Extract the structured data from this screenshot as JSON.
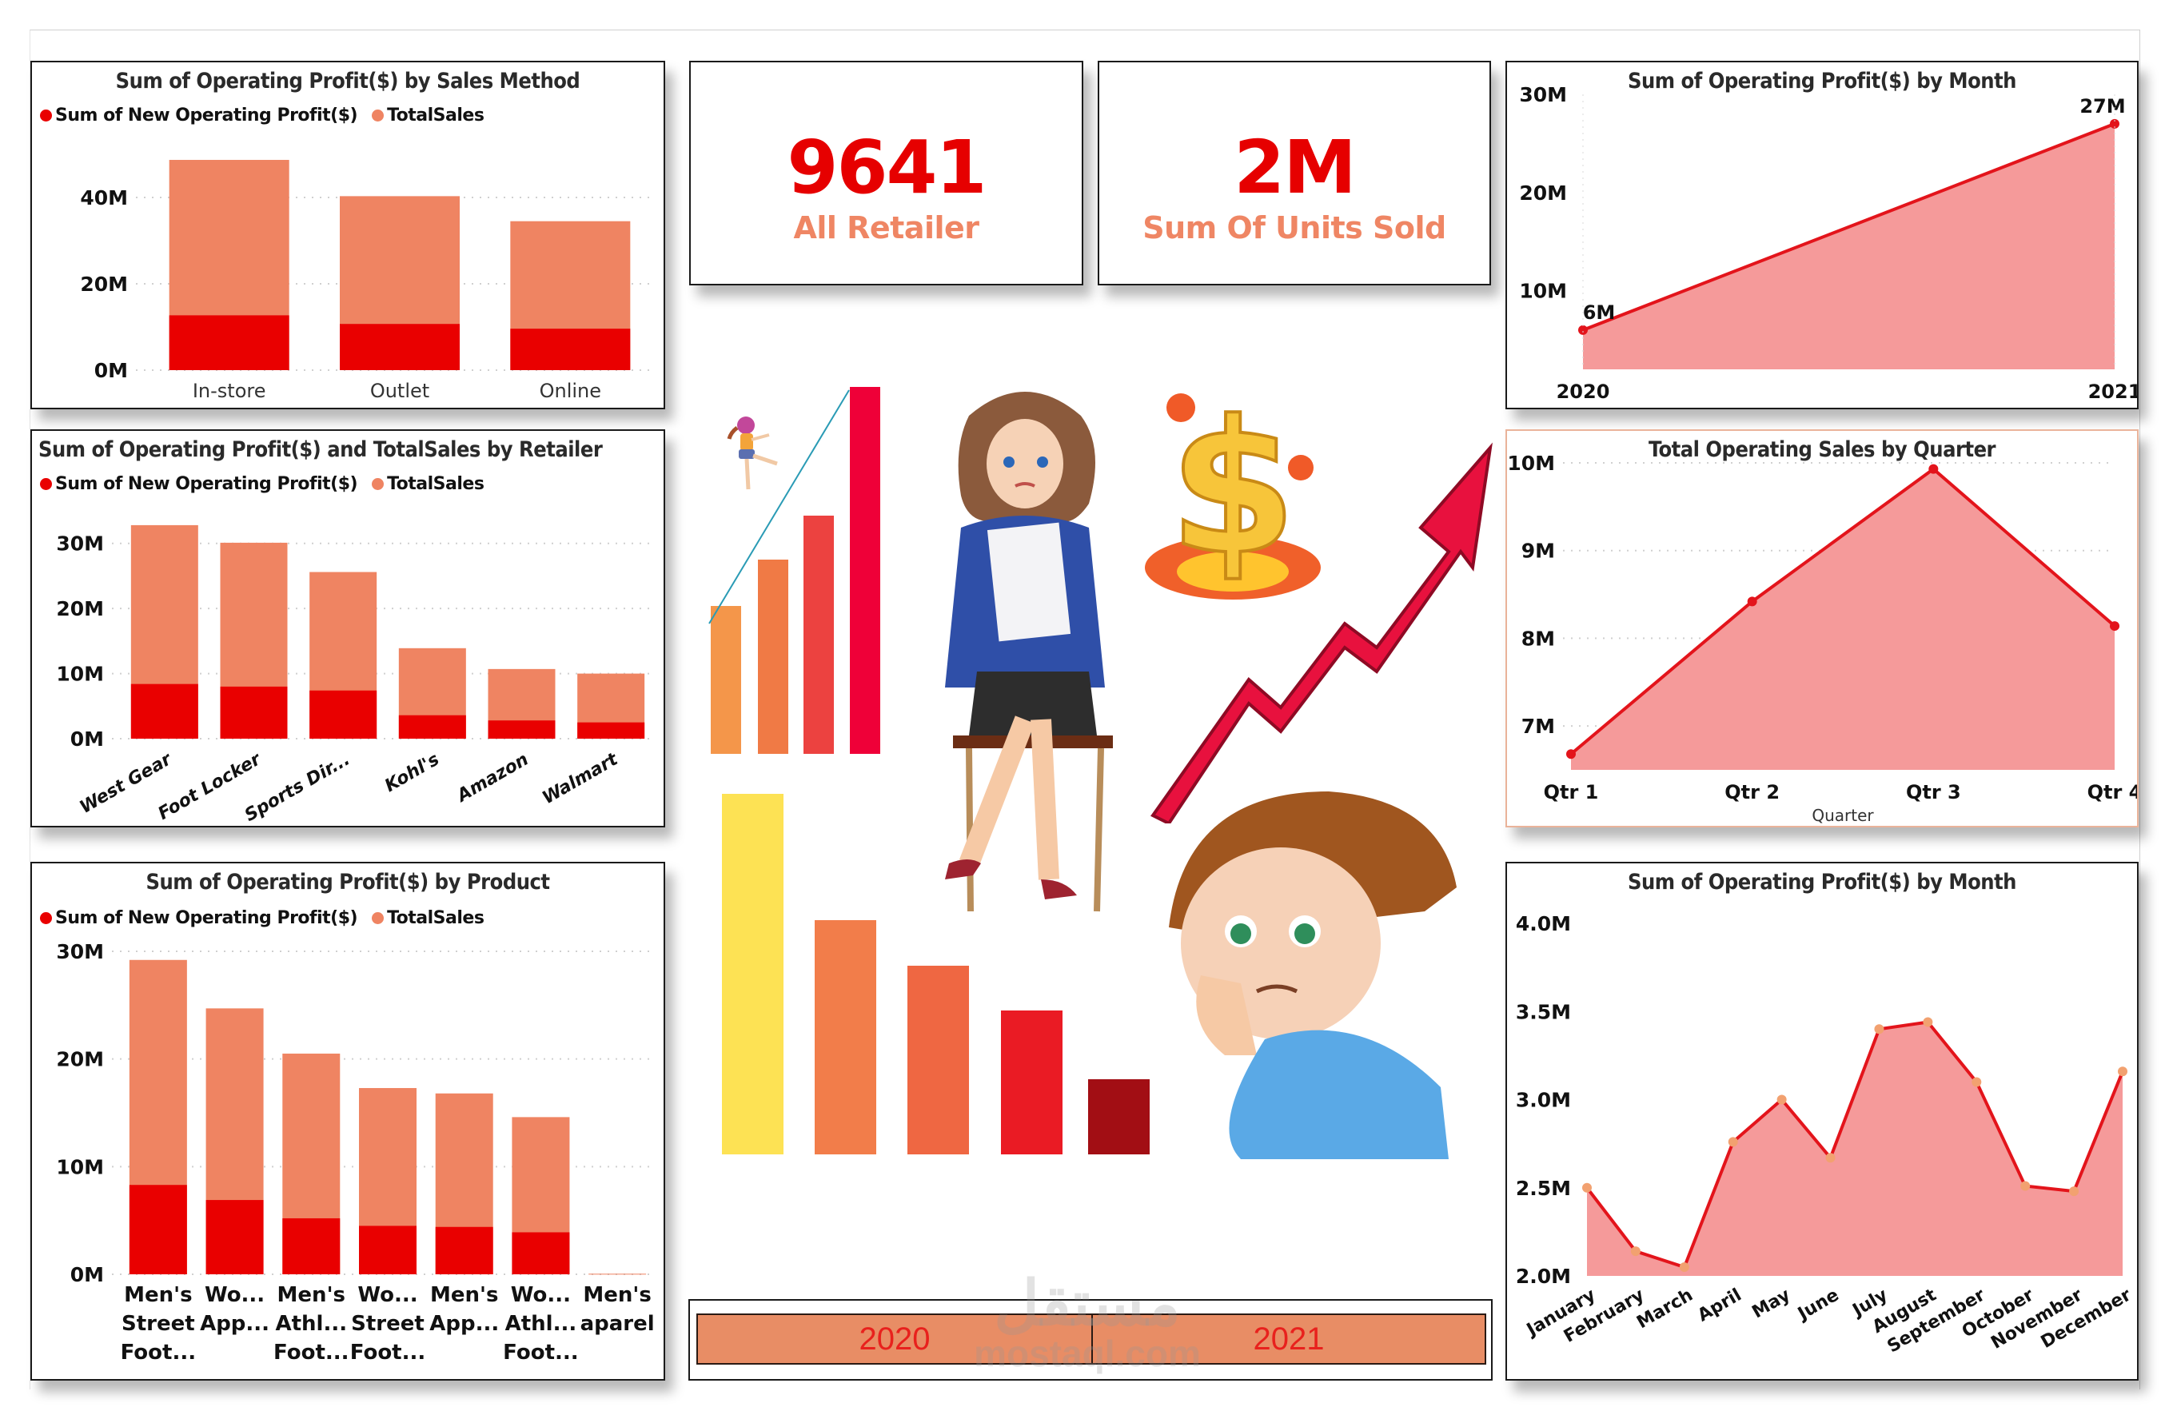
{
  "colors": {
    "profit": "#e90000",
    "total_sales": "#ef8462",
    "line": "#e3141b",
    "area": "#f59a9a",
    "marker_month": "#f2a170",
    "kpi_value": "#e60000",
    "kpi_label": "#ef8664",
    "slicer_bg": "#e88d65",
    "slicer_text": "#e8211d"
  },
  "legend": {
    "profit_label": "Sum of New Operating Profit($)",
    "total_label": "TotalSales"
  },
  "kpis": [
    {
      "value": "9641",
      "label": "All Retailer"
    },
    {
      "value": "2M",
      "label": "Sum Of Units Sold"
    }
  ],
  "slicer": {
    "options": [
      "2020",
      "2021"
    ]
  },
  "watermark": {
    "arabic": "مستقل",
    "latin": "mostaql.com"
  },
  "illustration": {
    "rising_bars_colors": [
      "#f4964a",
      "#f07a45",
      "#ec4240",
      "#ef0038"
    ],
    "falling_bars_colors": [
      "#fde254",
      "#f27d4a",
      "#ef6742",
      "#ea1b24",
      "#a20e14"
    ]
  },
  "chart_data": [
    {
      "id": "sales_method",
      "type": "bar",
      "stacked": true,
      "title": "Sum of Operating Profit($) by Sales Method",
      "categories": [
        "In-store",
        "Outlet",
        "Online"
      ],
      "series": [
        {
          "name": "Sum of New Operating Profit($)",
          "values": [
            12.7,
            10.7,
            9.6
          ]
        },
        {
          "name": "TotalSales",
          "values": [
            48.7,
            40.3,
            34.5
          ]
        }
      ],
      "yticks": [
        "0M",
        "20M",
        "40M"
      ],
      "ylim": [
        0,
        50
      ],
      "unit": "M",
      "grid": true,
      "legend_position": "top-left"
    },
    {
      "id": "retailer",
      "type": "bar",
      "stacked": true,
      "title": "Sum of Operating Profit($) and TotalSales by Retailer",
      "categories": [
        "West Gear",
        "Foot Locker",
        "Sports Dir...",
        "Kohl's",
        "Amazon",
        "Walmart"
      ],
      "series": [
        {
          "name": "Sum of New Operating Profit($)",
          "values": [
            8.4,
            8.0,
            7.4,
            3.6,
            2.8,
            2.5
          ]
        },
        {
          "name": "TotalSales",
          "values": [
            32.8,
            30.1,
            25.6,
            13.9,
            10.7,
            10.0
          ]
        }
      ],
      "yticks": [
        "0M",
        "10M",
        "20M",
        "30M"
      ],
      "ylim": [
        0,
        35
      ],
      "unit": "M",
      "grid": true,
      "legend_position": "top-left"
    },
    {
      "id": "product",
      "type": "bar",
      "stacked": true,
      "title": "Sum of Operating Profit($) by Product",
      "categories": [
        [
          "Men's",
          "Street",
          "Foot..."
        ],
        [
          "Wo...",
          "App..."
        ],
        [
          "Men's",
          "Athl...",
          "Foot..."
        ],
        [
          "Wo...",
          "Street",
          "Foot..."
        ],
        [
          "Men's",
          "App..."
        ],
        [
          "Wo...",
          "Athl...",
          "Foot..."
        ],
        [
          "Men's",
          "aparel"
        ]
      ],
      "series": [
        {
          "name": "Sum of New Operating Profit($)",
          "values": [
            8.3,
            6.9,
            5.2,
            4.5,
            4.4,
            3.9,
            0.0
          ]
        },
        {
          "name": "TotalSales",
          "values": [
            29.2,
            24.7,
            20.5,
            17.3,
            16.8,
            14.6,
            0.05
          ]
        }
      ],
      "yticks": [
        "0M",
        "10M",
        "20M",
        "30M"
      ],
      "ylim": [
        0,
        30
      ],
      "unit": "M",
      "grid": true,
      "legend_position": "top-left"
    },
    {
      "id": "profit_by_year",
      "type": "area",
      "title": "Sum of Operating Profit($) by Month",
      "x": [
        "2020",
        "2021"
      ],
      "values": [
        6,
        27
      ],
      "data_labels": [
        "6M",
        "27M"
      ],
      "yticks": [
        "10M",
        "20M",
        "30M"
      ],
      "ylim": [
        2,
        30
      ],
      "unit": "M",
      "grid": false
    },
    {
      "id": "quarter",
      "type": "area",
      "title": "Total Operating Sales by Quarter",
      "x": [
        "Qtr 1",
        "Qtr 2",
        "Qtr 3",
        "Qtr 4"
      ],
      "xlabel": "Quarter",
      "values": [
        6.68,
        8.42,
        9.93,
        8.14
      ],
      "yticks": [
        "7M",
        "8M",
        "9M",
        "10M"
      ],
      "ylim": [
        6.5,
        10
      ],
      "unit": "M",
      "grid": true
    },
    {
      "id": "profit_by_month",
      "type": "area",
      "title": "Sum of Operating Profit($) by Month",
      "x": [
        "January",
        "February",
        "March",
        "April",
        "May",
        "June",
        "July",
        "August",
        "September",
        "October",
        "November",
        "December"
      ],
      "values": [
        2.5,
        2.14,
        2.05,
        2.76,
        3.0,
        2.67,
        3.4,
        3.44,
        3.1,
        2.51,
        2.48,
        3.16
      ],
      "yticks": [
        "2.0M",
        "2.5M",
        "3.0M",
        "3.5M",
        "4.0M"
      ],
      "ylim": [
        2.0,
        4.0
      ],
      "unit": "M",
      "grid": false
    }
  ]
}
